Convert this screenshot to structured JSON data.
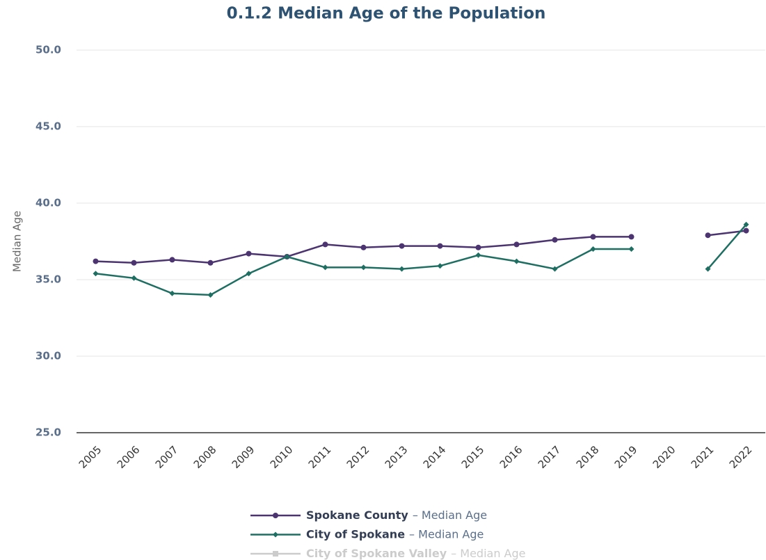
{
  "chart_data": {
    "type": "line",
    "title": "0.1.2 Median Age of the Population",
    "y_label": "Median Age",
    "categories": [
      "2005",
      "2006",
      "2007",
      "2008",
      "2009",
      "2010",
      "2011",
      "2012",
      "2013",
      "2014",
      "2015",
      "2016",
      "2017",
      "2018",
      "2019",
      "2020",
      "2021",
      "2022"
    ],
    "series": [
      {
        "name": "Spokane County",
        "color": "#4b3470",
        "marker": "circle",
        "visible": true,
        "values": [
          36.2,
          36.1,
          36.3,
          36.1,
          36.7,
          36.5,
          37.3,
          37.1,
          37.2,
          37.2,
          37.1,
          37.3,
          37.6,
          37.8,
          37.8,
          null,
          37.9,
          38.2
        ]
      },
      {
        "name": "City of Spokane",
        "color": "#1f6e62",
        "marker": "diamond",
        "visible": true,
        "values": [
          35.4,
          35.1,
          34.1,
          34.0,
          35.4,
          36.5,
          35.8,
          35.8,
          35.7,
          35.9,
          36.6,
          36.2,
          35.7,
          37.0,
          37.0,
          null,
          35.7,
          38.6
        ]
      },
      {
        "name": "City of Spokane Valley",
        "color": "#cccccc",
        "marker": "square",
        "visible": false,
        "values": [
          null,
          null,
          null,
          null,
          null,
          null,
          null,
          null,
          null,
          null,
          null,
          null,
          null,
          null,
          null,
          null,
          null,
          null
        ]
      }
    ],
    "legend_suffix": "– Median Age",
    "ylim": [
      25,
      50
    ],
    "yticks": [
      {
        "value": 25,
        "label": "25.0"
      },
      {
        "value": 30,
        "label": "30.0"
      },
      {
        "value": 35,
        "label": "35.0"
      },
      {
        "value": 40,
        "label": "40.0"
      },
      {
        "value": 45,
        "label": "45.0"
      },
      {
        "value": 50,
        "label": "50.0"
      }
    ],
    "grid": true,
    "legend": "bottom"
  }
}
